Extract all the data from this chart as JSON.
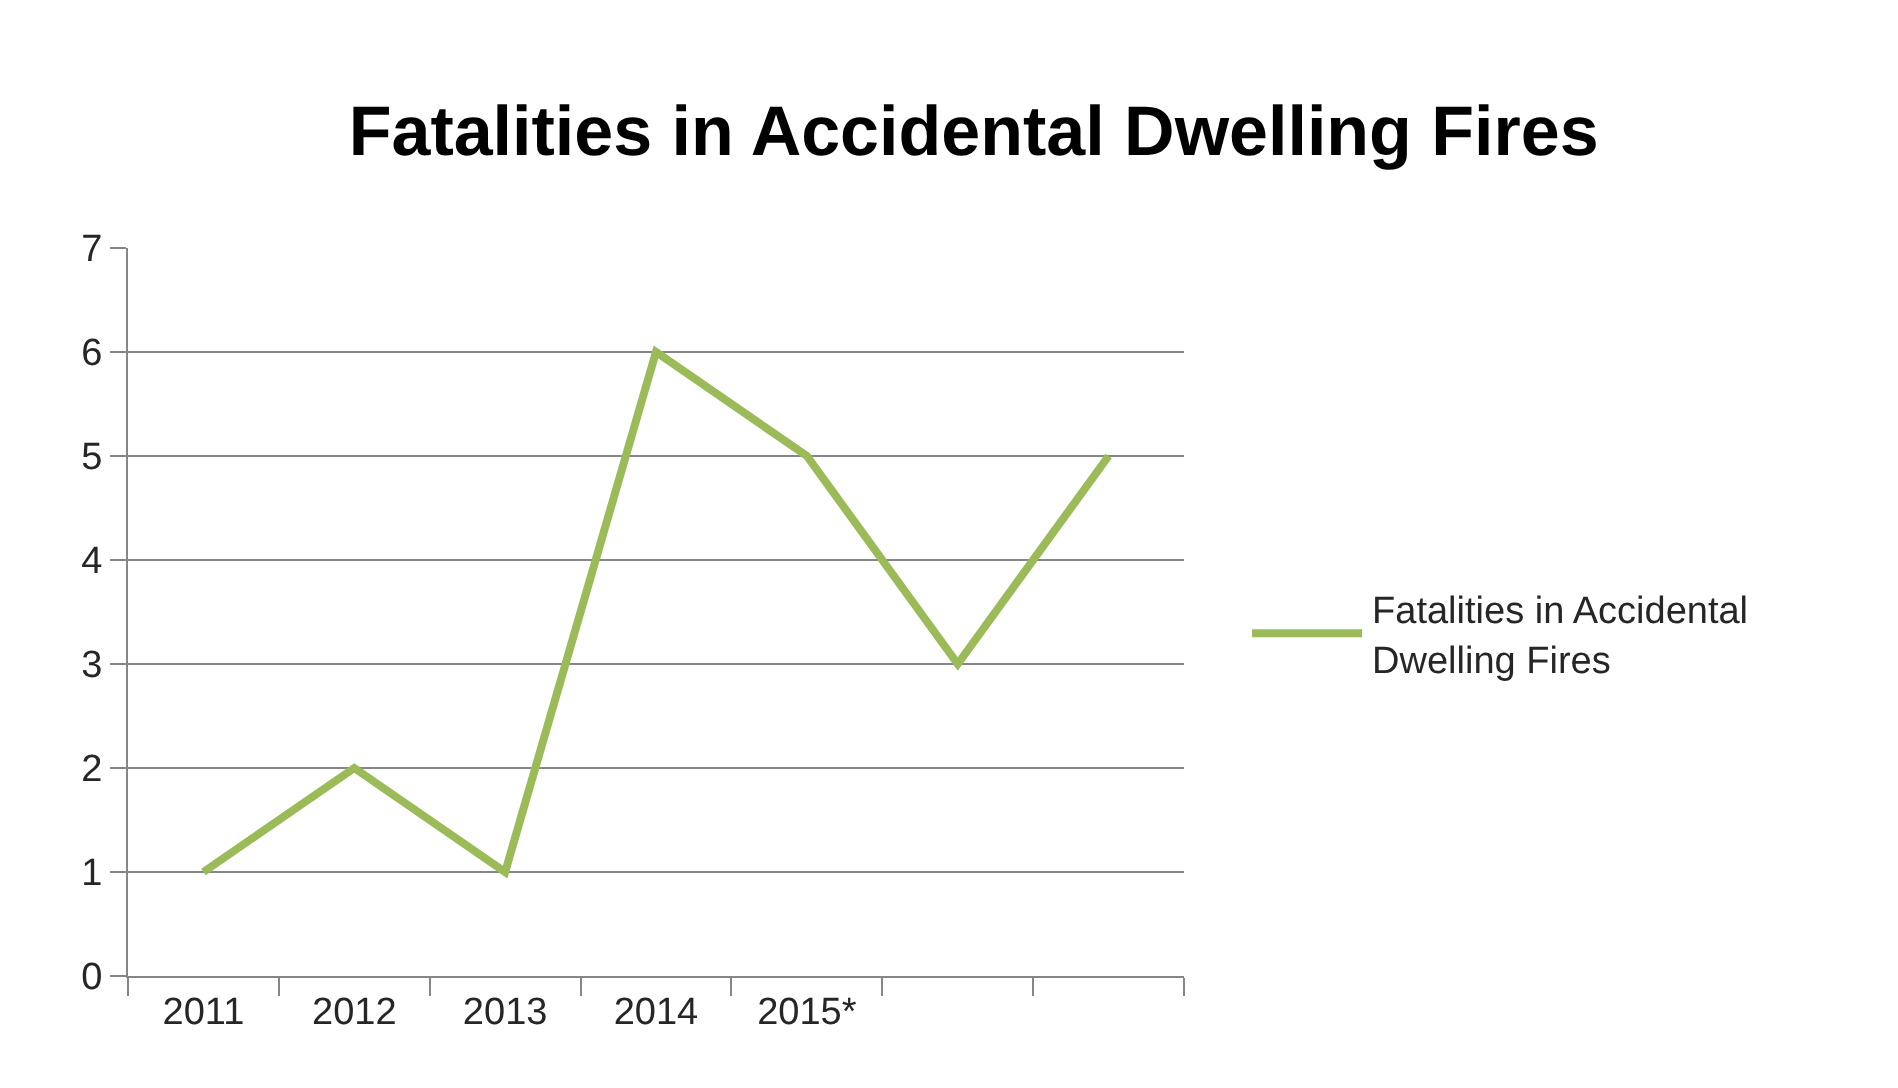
{
  "chart_data": {
    "type": "line",
    "title": "Fatalities in Accidental Dwelling Fires",
    "categories": [
      "2011",
      "2012",
      "2013",
      "2014",
      "2015*",
      null,
      null
    ],
    "series": [
      {
        "name": "Fatalities in Accidental Dwelling Fires",
        "color": "#9bbb59",
        "values": [
          1,
          2,
          1,
          6,
          5,
          3,
          5
        ]
      }
    ],
    "ylim": [
      0,
      7
    ],
    "yticks": [
      0,
      1,
      2,
      3,
      4,
      5,
      6,
      7
    ],
    "grid": "y",
    "legend": "right",
    "marker": "none",
    "line_style": "solid"
  }
}
